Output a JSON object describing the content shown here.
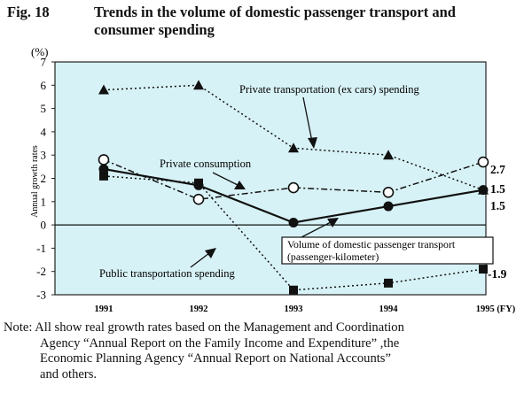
{
  "figure": {
    "number": "Fig. 18",
    "title": "Trends in the volume of domestic passenger transport and consumer spending"
  },
  "chart_data": {
    "type": "line",
    "categories": [
      "1991",
      "1992",
      "1993",
      "1994",
      "1995 (FY)"
    ],
    "ylabel": "Annual growth rates",
    "yunit": "(%)",
    "ylim": [
      -3,
      7
    ],
    "yticks": [
      -3,
      -2,
      -1,
      0,
      1,
      2,
      3,
      4,
      5,
      6,
      7
    ],
    "background": "#d7f2f6",
    "series": [
      {
        "name": "Private transportation (ex cars) spending",
        "marker": "triangle",
        "line": "dotted",
        "values": [
          5.8,
          6.0,
          3.3,
          3.0,
          1.5
        ]
      },
      {
        "name": "Private consumption",
        "marker": "open-circle",
        "line": "dash-dot",
        "values": [
          2.8,
          1.1,
          1.6,
          1.4,
          2.7
        ]
      },
      {
        "name": "Volume of domestic passenger transport (passenger-kilometer)",
        "marker": "filled-circle",
        "line": "solid",
        "values": [
          2.4,
          1.7,
          0.1,
          0.8,
          1.5
        ]
      },
      {
        "name": "Public transportation spending",
        "marker": "square",
        "line": "dotted",
        "values": [
          2.1,
          1.8,
          -2.8,
          -2.5,
          -1.9
        ]
      }
    ],
    "end_labels": [
      "2.7",
      "1.5",
      "1.5",
      "-1.9"
    ],
    "annotations": {
      "private_transport": "Private transportation (ex cars) spending",
      "private_consumption": "Private consumption",
      "volume_line1": "Volume of domestic passenger transport",
      "volume_line2": "(passenger-kilometer)",
      "public_transport": "Public transportation spending"
    }
  },
  "note": {
    "line1": "Note: All show real growth rates based on the Management and Coordination",
    "line2": "Agency “Annual Report on the Family Income and Expenditure” ,the",
    "line3": "Economic Planning Agency “Annual Report on National Accounts”",
    "line4": "and others."
  }
}
